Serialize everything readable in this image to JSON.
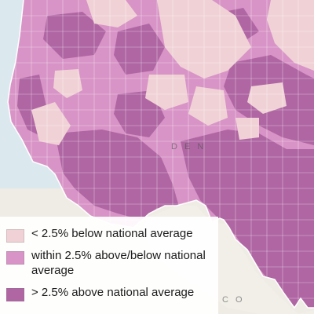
{
  "colors": {
    "ocean": "#dbe9ef",
    "land": "#eeece4",
    "below": "#f0d2d6",
    "within": "#d894c6",
    "above": "#b066a3",
    "mexico": "#f1efe8",
    "border": "#ffffff"
  },
  "map_labels": {
    "denver_fragment": "D E N",
    "mexico_fragment": "C O"
  },
  "legend": {
    "items": [
      {
        "label": "< 2.5% below national average",
        "color": "#f0d2d6",
        "icon": "swatch-below-icon"
      },
      {
        "label": "within 2.5% above/below national average",
        "color": "#d894c6",
        "icon": "swatch-within-icon"
      },
      {
        "label": "> 2.5% above national average",
        "color": "#b066a3",
        "icon": "swatch-above-icon"
      }
    ]
  }
}
